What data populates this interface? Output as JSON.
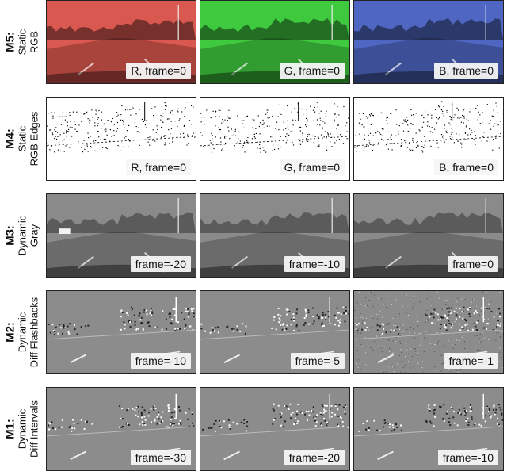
{
  "rows": [
    {
      "id": "M5:",
      "desc": "Static",
      "desc2": "RGB",
      "style": "rgb",
      "panels": [
        {
          "caption": "R, frame=0",
          "tint": "#d9584f"
        },
        {
          "caption": "G, frame=0",
          "tint": "#3fc93f"
        },
        {
          "caption": "B, frame=0",
          "tint": "#4f66c2"
        }
      ]
    },
    {
      "id": "M4:",
      "desc": "Static",
      "desc2": "RGB Edges",
      "style": "edges",
      "panels": [
        {
          "caption": "R, frame=0"
        },
        {
          "caption": "G, frame=0"
        },
        {
          "caption": "B, frame=0"
        }
      ]
    },
    {
      "id": "M3:",
      "desc": "Dynamic",
      "desc2": "Gray",
      "style": "gray",
      "panels": [
        {
          "caption": "frame=-20"
        },
        {
          "caption": "frame=-10"
        },
        {
          "caption": "frame=0"
        }
      ]
    },
    {
      "id": "M2:",
      "desc": "Dynamic",
      "desc2": "Diff Flashbacks",
      "style": "diff",
      "panels": [
        {
          "caption": "frame=-10"
        },
        {
          "caption": "frame=-5"
        },
        {
          "caption": "frame=-1"
        }
      ]
    },
    {
      "id": "M1:",
      "desc": "Dynamic",
      "desc2": "Diff Intervals",
      "style": "diff",
      "panels": [
        {
          "caption": "frame=-30"
        },
        {
          "caption": "frame=-20"
        },
        {
          "caption": "frame=-10"
        }
      ]
    }
  ]
}
